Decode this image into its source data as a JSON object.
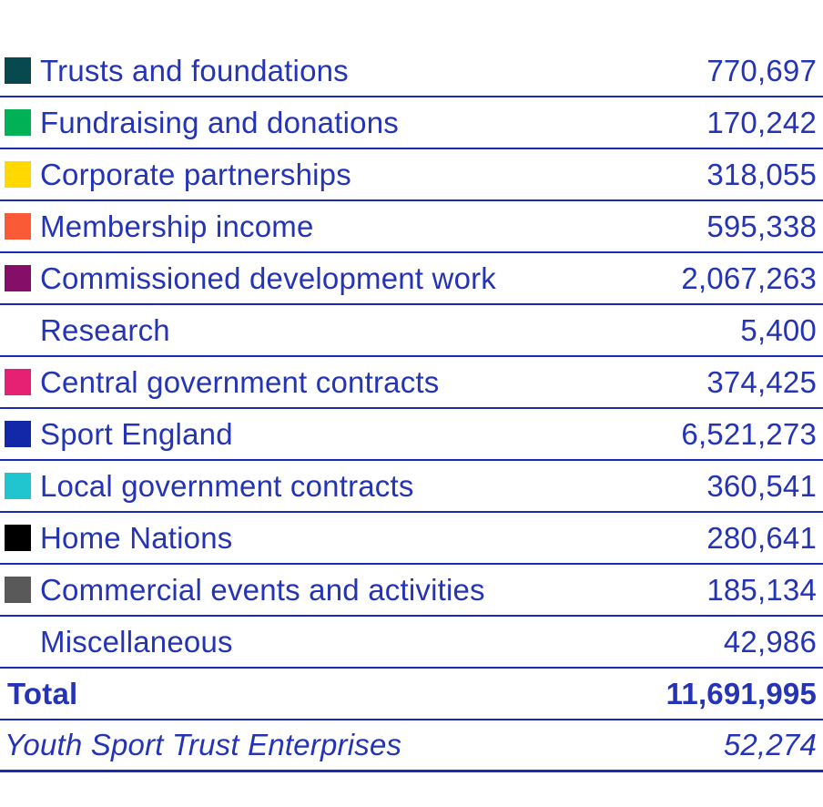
{
  "colors": {
    "text": "#2434b4",
    "line": "#1b2aae"
  },
  "table": {
    "rows": [
      {
        "label": "Trusts and foundations",
        "value": "770,697",
        "color": "#07494f",
        "swatch_name": "dark-teal"
      },
      {
        "label": "Fundraising and donations",
        "value": "170,242",
        "color": "#00b155",
        "swatch_name": "green"
      },
      {
        "label": "Corporate partnerships",
        "value": "318,055",
        "color": "#ffd900",
        "swatch_name": "yellow"
      },
      {
        "label": "Membership income",
        "value": "595,338",
        "color": "#fb5a36",
        "swatch_name": "orange"
      },
      {
        "label": "Commissioned development work",
        "value": "2,067,263",
        "color": "#850f68",
        "swatch_name": "magenta"
      },
      {
        "label": "Research",
        "value": "5,400",
        "color": "#ffffff",
        "swatch_name": "white"
      },
      {
        "label": "Central government contracts",
        "value": "374,425",
        "color": "#e62173",
        "swatch_name": "pink"
      },
      {
        "label": "Sport England",
        "value": "6,521,273",
        "color": "#1228a8",
        "swatch_name": "blue"
      },
      {
        "label": "Local government contracts",
        "value": "360,541",
        "color": "#21c5cf",
        "swatch_name": "turquoise"
      },
      {
        "label": "Home Nations",
        "value": "280,641",
        "color": "#000000",
        "swatch_name": "black"
      },
      {
        "label": "Commercial events and activities",
        "value": "185,134",
        "color": "#595959",
        "swatch_name": "gray"
      },
      {
        "label": "Miscellaneous",
        "value": "42,986",
        "color": "#ffffff",
        "swatch_name": "white"
      }
    ],
    "total": {
      "label": "Total",
      "value": "11,691,995"
    },
    "footnote": {
      "label": "Youth Sport Trust Enterprises",
      "value": "52,274"
    }
  },
  "chart_data": {
    "type": "table",
    "title": "",
    "categories": [
      "Trusts and foundations",
      "Fundraising and donations",
      "Corporate partnerships",
      "Membership income",
      "Commissioned development work",
      "Research",
      "Central government contracts",
      "Sport England",
      "Local government contracts",
      "Home Nations",
      "Commercial events and activities",
      "Miscellaneous"
    ],
    "values": [
      770697,
      170242,
      318055,
      595338,
      2067263,
      5400,
      374425,
      6521273,
      360541,
      280641,
      185134,
      42986
    ],
    "legend_colors": [
      "#07494f",
      "#00b155",
      "#ffd900",
      "#fb5a36",
      "#850f68",
      "#ffffff",
      "#e62173",
      "#1228a8",
      "#21c5cf",
      "#000000",
      "#595959",
      "#ffffff"
    ],
    "total": 11691995,
    "footnote_label": "Youth Sport Trust Enterprises",
    "footnote_value": 52274,
    "legend_position": "left",
    "grid": false
  }
}
